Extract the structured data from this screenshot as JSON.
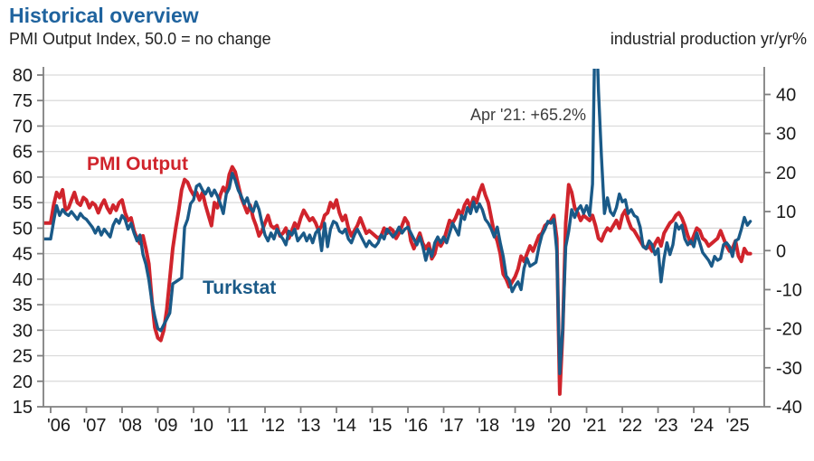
{
  "header": {
    "title": "Historical overview",
    "subtitle_left": "PMI Output Index, 50.0 = no change",
    "subtitle_right": "industrial production yr/yr%"
  },
  "chart_data": {
    "type": "line",
    "title": "Historical overview",
    "subtitle": "PMI Output Index, 50.0 = no change",
    "right_axis_caption": "industrial production yr/yr%",
    "frequency": "monthly",
    "x_start": "2006-01",
    "x_end": "2025-08",
    "x_tick_labels": [
      "'06",
      "'07",
      "'08",
      "'09",
      "'10",
      "'11",
      "'12",
      "'13",
      "'14",
      "'15",
      "'16",
      "'17",
      "'18",
      "'19",
      "'20",
      "'21",
      "'22",
      "'23",
      "'24",
      "'25"
    ],
    "left_axis": {
      "ticks": [
        80,
        75,
        70,
        65,
        60,
        55,
        50,
        45,
        40,
        35,
        30,
        25,
        20,
        15
      ],
      "min": 15,
      "max": 80
    },
    "right_axis": {
      "ticks": [
        40,
        30,
        20,
        10,
        0,
        -10,
        -20,
        -30,
        -40
      ],
      "min": -40,
      "max": 45
    },
    "grid": true,
    "legend_position": "inline-labels",
    "annotation": {
      "text": "Apr '21: +65.2%"
    },
    "colors": {
      "pmi": "#D0242C",
      "turkstat": "#1A5A88",
      "title": "#1F639E",
      "grid": "#D9D9D9",
      "axis": "#808080",
      "tick_text": "#1A1A1A",
      "annotation_text": "#3D3D3D"
    },
    "series": [
      {
        "name": "PMI Output",
        "axis": "left",
        "values": [
          51.0,
          54.5,
          57.0,
          56.0,
          57.5,
          53.5,
          54.0,
          55.5,
          57.0,
          55.0,
          54.5,
          56.0,
          55.5,
          54.0,
          55.0,
          54.5,
          53.0,
          54.5,
          55.5,
          54.0,
          53.0,
          54.5,
          53.5,
          55.0,
          55.5,
          53.0,
          51.5,
          52.0,
          49.5,
          48.0,
          47.0,
          48.5,
          46.0,
          43.0,
          36.0,
          30.5,
          28.5,
          28.0,
          30.0,
          34.0,
          40.0,
          46.0,
          50.0,
          53.5,
          57.5,
          59.5,
          59.0,
          57.5,
          56.5,
          57.0,
          55.5,
          57.0,
          54.5,
          52.5,
          50.5,
          55.0,
          54.0,
          56.5,
          58.0,
          57.0,
          60.5,
          62.0,
          61.0,
          58.5,
          56.0,
          54.5,
          53.0,
          54.5,
          52.0,
          50.5,
          48.5,
          49.5,
          51.0,
          52.5,
          50.5,
          50.0,
          50.5,
          48.5,
          49.0,
          50.0,
          48.0,
          49.5,
          51.0,
          50.0,
          52.0,
          53.5,
          52.5,
          51.5,
          52.0,
          51.0,
          49.5,
          50.5,
          52.5,
          53.0,
          55.0,
          54.0,
          55.5,
          53.0,
          51.5,
          52.5,
          50.0,
          48.5,
          49.5,
          50.5,
          52.0,
          50.5,
          49.0,
          49.5,
          49.0,
          48.5,
          48.0,
          48.5,
          50.0,
          49.0,
          50.0,
          49.5,
          48.0,
          49.0,
          50.5,
          52.0,
          51.0,
          47.5,
          46.0,
          47.5,
          49.0,
          47.0,
          46.0,
          47.0,
          44.0,
          45.0,
          47.5,
          46.5,
          47.5,
          49.5,
          51.5,
          51.0,
          52.0,
          53.5,
          52.5,
          54.5,
          55.5,
          54.0,
          56.0,
          55.0,
          57.0,
          58.5,
          56.5,
          55.0,
          52.0,
          49.0,
          47.5,
          45.0,
          41.0,
          40.0,
          38.5,
          39.5,
          40.5,
          42.0,
          44.5,
          43.5,
          45.0,
          46.5,
          45.5,
          47.0,
          48.5,
          49.0,
          50.5,
          51.0,
          51.5,
          52.5,
          48.0,
          17.5,
          30.0,
          51.0,
          58.5,
          57.0,
          54.0,
          53.0,
          51.5,
          52.5,
          52.0,
          51.5,
          52.5,
          50.5,
          48.0,
          47.5,
          49.0,
          50.0,
          49.5,
          50.5,
          51.5,
          50.0,
          52.5,
          53.5,
          51.5,
          50.0,
          49.5,
          48.5,
          47.5,
          46.5,
          46.0,
          46.5,
          45.5,
          47.0,
          48.0,
          46.5,
          49.0,
          50.0,
          51.0,
          51.5,
          52.5,
          53.0,
          52.0,
          50.5,
          48.5,
          47.0,
          48.5,
          50.0,
          49.5,
          48.0,
          47.5,
          46.5,
          47.0,
          47.5,
          48.0,
          49.5,
          48.0,
          46.5,
          45.5,
          46.0,
          47.5,
          44.5,
          43.5,
          46.0,
          45.0,
          45.0
        ]
      },
      {
        "name": "Turkstat",
        "axis": "right",
        "values": [
          3.0,
          7.5,
          11.5,
          9.0,
          10.5,
          9.5,
          9.0,
          10.0,
          9.0,
          8.0,
          9.5,
          8.5,
          8.0,
          7.0,
          6.0,
          4.5,
          6.0,
          4.0,
          5.5,
          4.5,
          3.5,
          6.5,
          8.0,
          7.0,
          9.0,
          8.0,
          5.5,
          7.0,
          4.5,
          2.5,
          4.0,
          -1.0,
          -3.5,
          -7.5,
          -13.0,
          -17.0,
          -20.0,
          -20.5,
          -19.0,
          -17.5,
          -16.0,
          -8.5,
          -8.0,
          -7.5,
          -7.0,
          6.0,
          8.0,
          12.0,
          13.0,
          16.5,
          17.0,
          15.5,
          14.5,
          16.0,
          14.0,
          15.5,
          14.0,
          12.0,
          9.5,
          14.5,
          16.0,
          19.8,
          18.0,
          15.5,
          14.0,
          12.0,
          13.5,
          11.0,
          10.0,
          12.5,
          10.5,
          7.0,
          4.0,
          2.5,
          4.5,
          3.0,
          5.5,
          4.0,
          3.0,
          1.5,
          5.0,
          4.0,
          5.5,
          2.5,
          3.5,
          4.5,
          2.5,
          4.0,
          2.0,
          4.5,
          5.5,
          0.0,
          7.0,
          1.0,
          5.5,
          7.5,
          7.0,
          5.0,
          4.5,
          5.5,
          3.0,
          2.0,
          4.0,
          5.5,
          4.0,
          2.5,
          1.0,
          2.5,
          1.5,
          1.0,
          2.0,
          4.0,
          3.0,
          5.5,
          4.5,
          3.5,
          4.5,
          6.0,
          4.5,
          5.5,
          6.0,
          4.5,
          3.0,
          1.5,
          3.5,
          1.0,
          -2.5,
          0.5,
          -1.5,
          2.0,
          3.5,
          2.0,
          3.5,
          2.0,
          4.5,
          7.0,
          5.5,
          4.0,
          9.0,
          8.0,
          11.0,
          9.5,
          12.5,
          10.0,
          12.0,
          10.5,
          8.0,
          7.0,
          5.5,
          3.5,
          6.0,
          2.0,
          -1.5,
          -6.5,
          -7.5,
          -10.5,
          -9.0,
          -8.0,
          -10.0,
          -4.5,
          -2.0,
          -4.0,
          -3.5,
          -3.0,
          1.0,
          4.0,
          5.5,
          7.5,
          7.0,
          8.0,
          0.0,
          -31.5,
          -20.0,
          1.0,
          5.0,
          10.5,
          8.5,
          10.5,
          11.5,
          9.5,
          11.5,
          9.0,
          17.0,
          65.2,
          41.0,
          24.0,
          9.5,
          13.5,
          10.0,
          9.0,
          11.0,
          14.5,
          12.5,
          13.0,
          9.5,
          10.5,
          9.0,
          8.5,
          6.0,
          1.0,
          0.5,
          2.5,
          1.5,
          -1.0,
          0.5,
          -8.0,
          -2.0,
          2.0,
          -1.0,
          1.5,
          7.0,
          5.5,
          6.5,
          3.0,
          1.5,
          2.5,
          1.0,
          4.5,
          2.0,
          -0.5,
          -1.5,
          -2.5,
          -4.0,
          -1.5,
          -2.5,
          -2.0,
          1.5,
          2.0,
          1.0,
          -1.5,
          2.5,
          3.0,
          5.5,
          8.5,
          6.5,
          7.5
        ]
      }
    ]
  }
}
